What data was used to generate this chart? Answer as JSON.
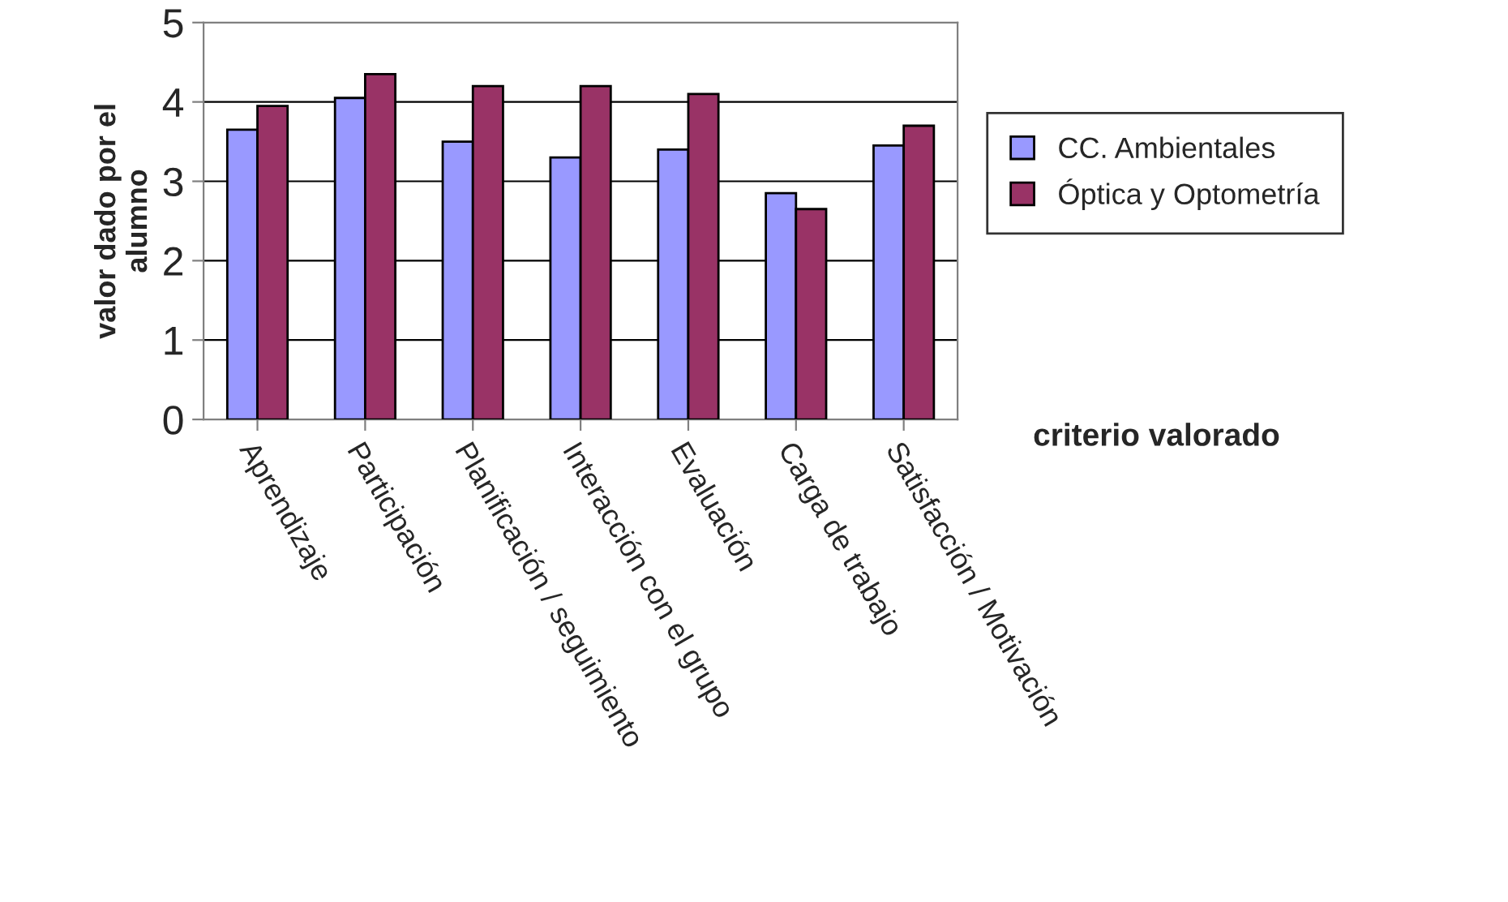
{
  "chart_data": {
    "type": "bar",
    "categories": [
      "Aprendizaje",
      "Participación",
      "Planificación / seguimiento",
      "Interacción con el grupo",
      "Evaluación",
      "Carga de trabajo",
      "Satisfacción / Motivación"
    ],
    "series": [
      {
        "name": "CC. Ambientales",
        "color": "#9999ff",
        "values": [
          3.65,
          4.05,
          3.5,
          3.3,
          3.4,
          2.85,
          3.45
        ]
      },
      {
        "name": "Óptica y Optometría",
        "color": "#993366",
        "values": [
          3.95,
          4.35,
          4.2,
          4.2,
          4.1,
          2.65,
          3.7
        ]
      }
    ],
    "xlabel": "criterio valorado",
    "ylabel": "valor dado por el\nalumno",
    "ylim": [
      0,
      5
    ],
    "yticks": [
      0,
      1,
      2,
      3,
      4,
      5
    ],
    "grid": "y",
    "legend": "right"
  }
}
